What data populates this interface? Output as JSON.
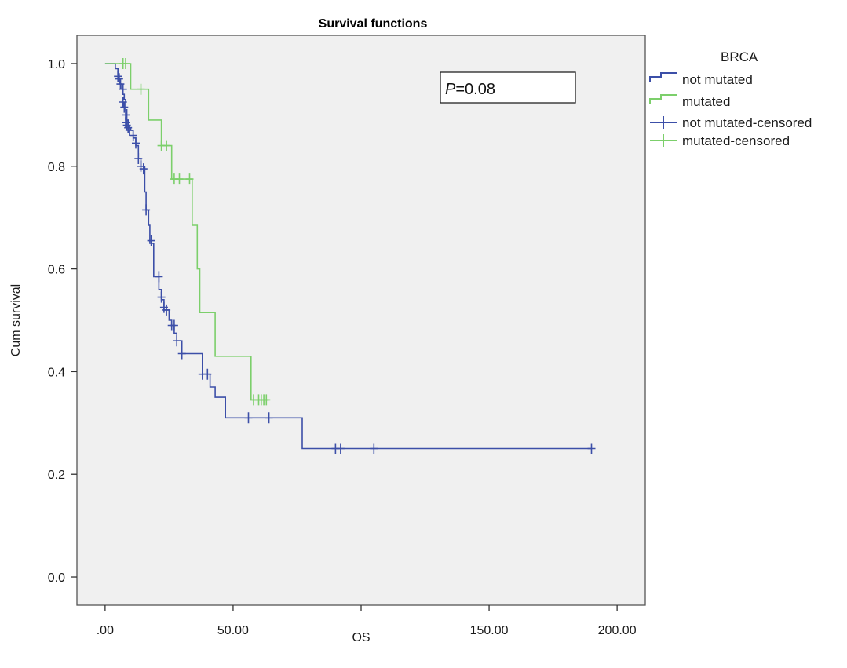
{
  "chart_data": {
    "type": "line",
    "title": "Survival functions",
    "xlabel": "OS",
    "ylabel": "Cum survival",
    "xlim": [
      -11,
      211
    ],
    "ylim": [
      -0.055,
      1.055
    ],
    "x_ticks": [
      {
        "value": 0,
        "label": ".00"
      },
      {
        "value": 50,
        "label": "50.00"
      },
      {
        "value": 100,
        "label": ""
      },
      {
        "value": 150,
        "label": "150.00"
      },
      {
        "value": 200,
        "label": "200.00"
      }
    ],
    "y_ticks": [
      {
        "value": 0,
        "label": "0.0"
      },
      {
        "value": 0.2,
        "label": "0.2"
      },
      {
        "value": 0.4,
        "label": "0.4"
      },
      {
        "value": 0.6,
        "label": "0.6"
      },
      {
        "value": 0.8,
        "label": "0.8"
      },
      {
        "value": 1.0,
        "label": "1.0"
      }
    ],
    "grid": false,
    "legend": {
      "title": "BRCA",
      "position": "right",
      "entries": [
        "not mutated",
        "mutated",
        "not mutated-censored",
        "mutated-censored"
      ]
    },
    "annotation": {
      "italic": "P",
      "text": "=0.08"
    },
    "colors": {
      "not_mutated": "#3c4fa8",
      "mutated": "#7ccf6b",
      "plot_bg": "#f0f0f0",
      "frame": "#555555"
    },
    "series": [
      {
        "name": "not mutated",
        "steps": [
          [
            0,
            1.0
          ],
          [
            4,
            0.99
          ],
          [
            5,
            0.98
          ],
          [
            5.5,
            0.97
          ],
          [
            6,
            0.96
          ],
          [
            6.5,
            0.95
          ],
          [
            7,
            0.94
          ],
          [
            7.5,
            0.93
          ],
          [
            8,
            0.91
          ],
          [
            8.5,
            0.89
          ],
          [
            9,
            0.875
          ],
          [
            10,
            0.87
          ],
          [
            11,
            0.855
          ],
          [
            12,
            0.84
          ],
          [
            13,
            0.815
          ],
          [
            14,
            0.8
          ],
          [
            15.5,
            0.75
          ],
          [
            16,
            0.715
          ],
          [
            17,
            0.685
          ],
          [
            17.5,
            0.65
          ],
          [
            19,
            0.585
          ],
          [
            21,
            0.56
          ],
          [
            22,
            0.54
          ],
          [
            23,
            0.52
          ],
          [
            25,
            0.5
          ],
          [
            26,
            0.49
          ],
          [
            27,
            0.475
          ],
          [
            28,
            0.46
          ],
          [
            30,
            0.435
          ],
          [
            38,
            0.395
          ],
          [
            41,
            0.37
          ],
          [
            43,
            0.35
          ],
          [
            47,
            0.31
          ],
          [
            77,
            0.25
          ],
          [
            190,
            0.25
          ]
        ],
        "censored": [
          [
            5,
            0.975
          ],
          [
            5.5,
            0.97
          ],
          [
            6,
            0.96
          ],
          [
            7,
            0.95
          ],
          [
            7,
            0.925
          ],
          [
            7.5,
            0.915
          ],
          [
            8,
            0.9
          ],
          [
            8,
            0.885
          ],
          [
            8.5,
            0.88
          ],
          [
            9,
            0.875
          ],
          [
            9.5,
            0.87
          ],
          [
            11,
            0.86
          ],
          [
            12,
            0.845
          ],
          [
            13,
            0.815
          ],
          [
            14,
            0.8
          ],
          [
            15,
            0.795
          ],
          [
            16,
            0.715
          ],
          [
            18,
            0.655
          ],
          [
            21,
            0.585
          ],
          [
            22,
            0.545
          ],
          [
            23,
            0.525
          ],
          [
            24,
            0.52
          ],
          [
            26,
            0.49
          ],
          [
            27,
            0.49
          ],
          [
            28,
            0.46
          ],
          [
            30,
            0.435
          ],
          [
            38,
            0.395
          ],
          [
            40,
            0.395
          ],
          [
            56,
            0.31
          ],
          [
            64,
            0.31
          ],
          [
            90,
            0.25
          ],
          [
            92,
            0.25
          ],
          [
            105,
            0.25
          ],
          [
            190,
            0.25
          ]
        ]
      },
      {
        "name": "mutated",
        "steps": [
          [
            0,
            1.0
          ],
          [
            10,
            0.95
          ],
          [
            17,
            0.89
          ],
          [
            22,
            0.84
          ],
          [
            26,
            0.775
          ],
          [
            34,
            0.685
          ],
          [
            36,
            0.6
          ],
          [
            37,
            0.515
          ],
          [
            43,
            0.43
          ],
          [
            57,
            0.345
          ],
          [
            64,
            0.345
          ]
        ],
        "censored": [
          [
            7,
            1.0
          ],
          [
            8,
            1.0
          ],
          [
            14,
            0.95
          ],
          [
            22,
            0.84
          ],
          [
            24,
            0.84
          ],
          [
            27,
            0.775
          ],
          [
            29,
            0.775
          ],
          [
            33,
            0.775
          ],
          [
            58,
            0.345
          ],
          [
            60,
            0.345
          ],
          [
            61,
            0.345
          ],
          [
            62,
            0.345
          ],
          [
            63,
            0.345
          ]
        ]
      }
    ]
  }
}
